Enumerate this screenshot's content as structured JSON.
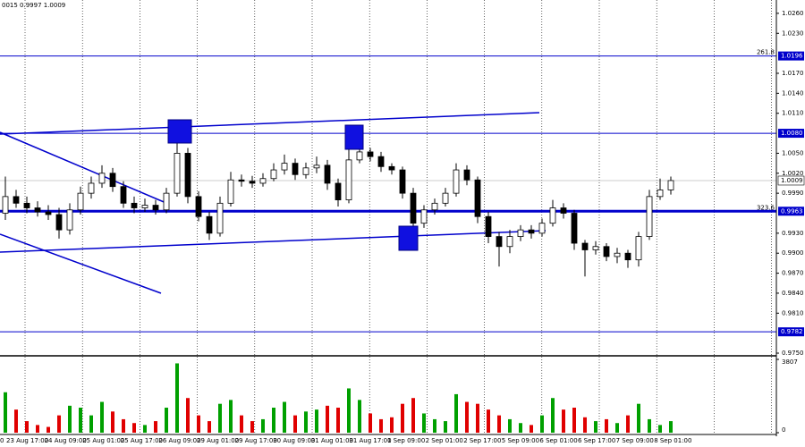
{
  "chart_data": {
    "type": "candlestick",
    "header": "0015 0.9997 1.0009",
    "ylim": [
      0.9746,
      1.028
    ],
    "yticks": [
      {
        "value": 1.026,
        "label": "1.0260"
      },
      {
        "value": 1.023,
        "label": "1.0230"
      },
      {
        "value": 1.017,
        "label": "1.0170"
      },
      {
        "value": 1.014,
        "label": "1.0140"
      },
      {
        "value": 1.011,
        "label": "1.0110"
      },
      {
        "value": 1.005,
        "label": "1.0050"
      },
      {
        "value": 1.002,
        "label": "1.0020"
      },
      {
        "value": 0.999,
        "label": "0.9990"
      },
      {
        "value": 0.993,
        "label": "0.9930"
      },
      {
        "value": 0.99,
        "label": "0.9900"
      },
      {
        "value": 0.987,
        "label": "0.9870"
      },
      {
        "value": 0.984,
        "label": "0.9840"
      },
      {
        "value": 0.981,
        "label": "0.9810"
      },
      {
        "value": 0.975,
        "label": "0.9750"
      }
    ],
    "levels": [
      {
        "value": 1.0196,
        "fib_label": "261.8"
      },
      {
        "value": {
          "value": 1.008,
          "label": "1.0080"
        }
      },
      {
        "value": 0.9963,
        "fib_label": "323.6",
        "thick": true
      },
      {
        "value": 0.9782
      }
    ],
    "current_price": 1.0009,
    "xlabels": [
      "0",
      "23 Aug 17:00",
      "24 Aug 09:00",
      "25 Aug 01:00",
      "25 Aug 17:00",
      "26 Aug 09:00",
      "29 Aug 01:00",
      "29 Aug 17:00",
      "30 Aug 09:00",
      "31 Aug 01:00",
      "31 Aug 17:00",
      "1 Sep 09:00",
      "2 Sep 01:00",
      "2 Sep 17:00",
      "5 Sep 09:00",
      "6 Sep 01:00",
      "6 Sep 17:00",
      "7 Sep 09:00",
      "8 Sep 01:00"
    ],
    "open": [
      0.996,
      0.9985,
      0.9975,
      0.9968,
      0.9962,
      0.9958,
      0.9935,
      0.9965,
      0.999,
      1.0005,
      1.002,
      1.0,
      0.9975,
      0.9968,
      0.9972,
      0.9965,
      0.999,
      1.005,
      0.9985,
      0.9955,
      0.993,
      0.9975,
      1.001,
      1.0008,
      1.0005,
      1.0012,
      1.0025,
      1.0035,
      1.0018,
      1.0028,
      1.0032,
      1.0005,
      0.998,
      1.004,
      1.0052,
      1.0045,
      1.003,
      1.0025,
      0.999,
      0.9945,
      0.9965,
      0.9975,
      0.999,
      1.0025,
      1.001,
      0.9955,
      0.9925,
      0.991,
      0.9925,
      0.9935,
      0.993,
      0.9945,
      0.9968,
      0.996,
      0.9915,
      0.9905,
      0.991,
      0.9895,
      0.99,
      0.989,
      0.9925,
      0.9985,
      0.9995
    ],
    "high": [
      1.0015,
      0.9995,
      0.9985,
      0.9978,
      0.9972,
      0.9968,
      0.9975,
      1.0,
      1.0015,
      1.0032,
      1.0028,
      1.0008,
      0.9985,
      0.9982,
      0.998,
      0.9998,
      1.007,
      1.0058,
      0.9993,
      0.9962,
      0.9985,
      1.0022,
      1.0018,
      1.0016,
      1.002,
      1.0035,
      1.0048,
      1.0042,
      1.0036,
      1.0045,
      1.004,
      1.0012,
      1.0065,
      1.006,
      1.0058,
      1.0052,
      1.0035,
      1.003,
      0.9998,
      0.9972,
      0.9982,
      0.9998,
      1.0035,
      1.0032,
      1.0015,
      0.9962,
      0.9932,
      0.9935,
      0.9942,
      0.9942,
      0.9952,
      0.998,
      0.9975,
      0.9965,
      0.992,
      0.9918,
      0.9915,
      0.9908,
      0.9905,
      0.9932,
      0.9995,
      1.0012,
      1.0015
    ],
    "low": [
      0.995,
      0.9968,
      0.996,
      0.9955,
      0.995,
      0.9922,
      0.9928,
      0.9958,
      0.9982,
      0.9998,
      0.9992,
      0.9968,
      0.996,
      0.9962,
      0.9958,
      0.996,
      0.9985,
      0.9975,
      0.9948,
      0.992,
      0.9925,
      0.997,
      1.0,
      0.9998,
      1.0,
      1.0008,
      1.0018,
      1.001,
      1.0012,
      1.002,
      0.9995,
      0.997,
      0.9975,
      1.0035,
      1.0038,
      1.0022,
      1.0018,
      0.9982,
      0.9925,
      0.9938,
      0.9958,
      0.997,
      0.9985,
      1.0002,
      0.9945,
      0.9915,
      0.988,
      0.99,
      0.9918,
      0.9922,
      0.9925,
      0.994,
      0.9952,
      0.9905,
      0.9865,
      0.9898,
      0.9888,
      0.9885,
      0.9878,
      0.988,
      0.992,
      0.998,
      0.9988
    ],
    "close": [
      0.9985,
      0.9975,
      0.9968,
      0.9962,
      0.9958,
      0.9935,
      0.9965,
      0.999,
      1.0005,
      1.002,
      1.0,
      0.9975,
      0.9968,
      0.9972,
      0.9965,
      0.999,
      1.005,
      0.9985,
      0.9955,
      0.993,
      0.9975,
      1.001,
      1.0008,
      1.0005,
      1.0012,
      1.0025,
      1.0035,
      1.0018,
      1.0028,
      1.0032,
      1.0005,
      0.998,
      1.004,
      1.0052,
      1.0045,
      1.003,
      1.0025,
      0.999,
      0.9945,
      0.9965,
      0.9975,
      0.999,
      1.0025,
      1.001,
      0.9955,
      0.9925,
      0.991,
      0.9925,
      0.9935,
      0.993,
      0.9945,
      0.9968,
      0.996,
      0.9915,
      0.9905,
      0.991,
      0.9895,
      0.99,
      0.989,
      0.9925,
      0.9985,
      0.9995,
      1.0009
    ],
    "volume": {
      "ylim": [
        0,
        3807
      ],
      "yticks": [
        3807,
        0
      ],
      "values": [
        2100,
        1200,
        600,
        400,
        300,
        900,
        1400,
        1300,
        900,
        1600,
        1100,
        700,
        500,
        400,
        600,
        1300,
        3600,
        1800,
        900,
        600,
        1500,
        1700,
        900,
        600,
        700,
        1300,
        1600,
        900,
        1100,
        1200,
        1400,
        1300,
        2300,
        1700,
        1000,
        700,
        800,
        1500,
        1800,
        1000,
        700,
        600,
        2000,
        1600,
        1500,
        1200,
        900,
        700,
        500,
        400,
        900,
        1800,
        1200,
        1300,
        800,
        600,
        700,
        500,
        900,
        1500,
        700,
        400,
        600
      ]
    }
  }
}
